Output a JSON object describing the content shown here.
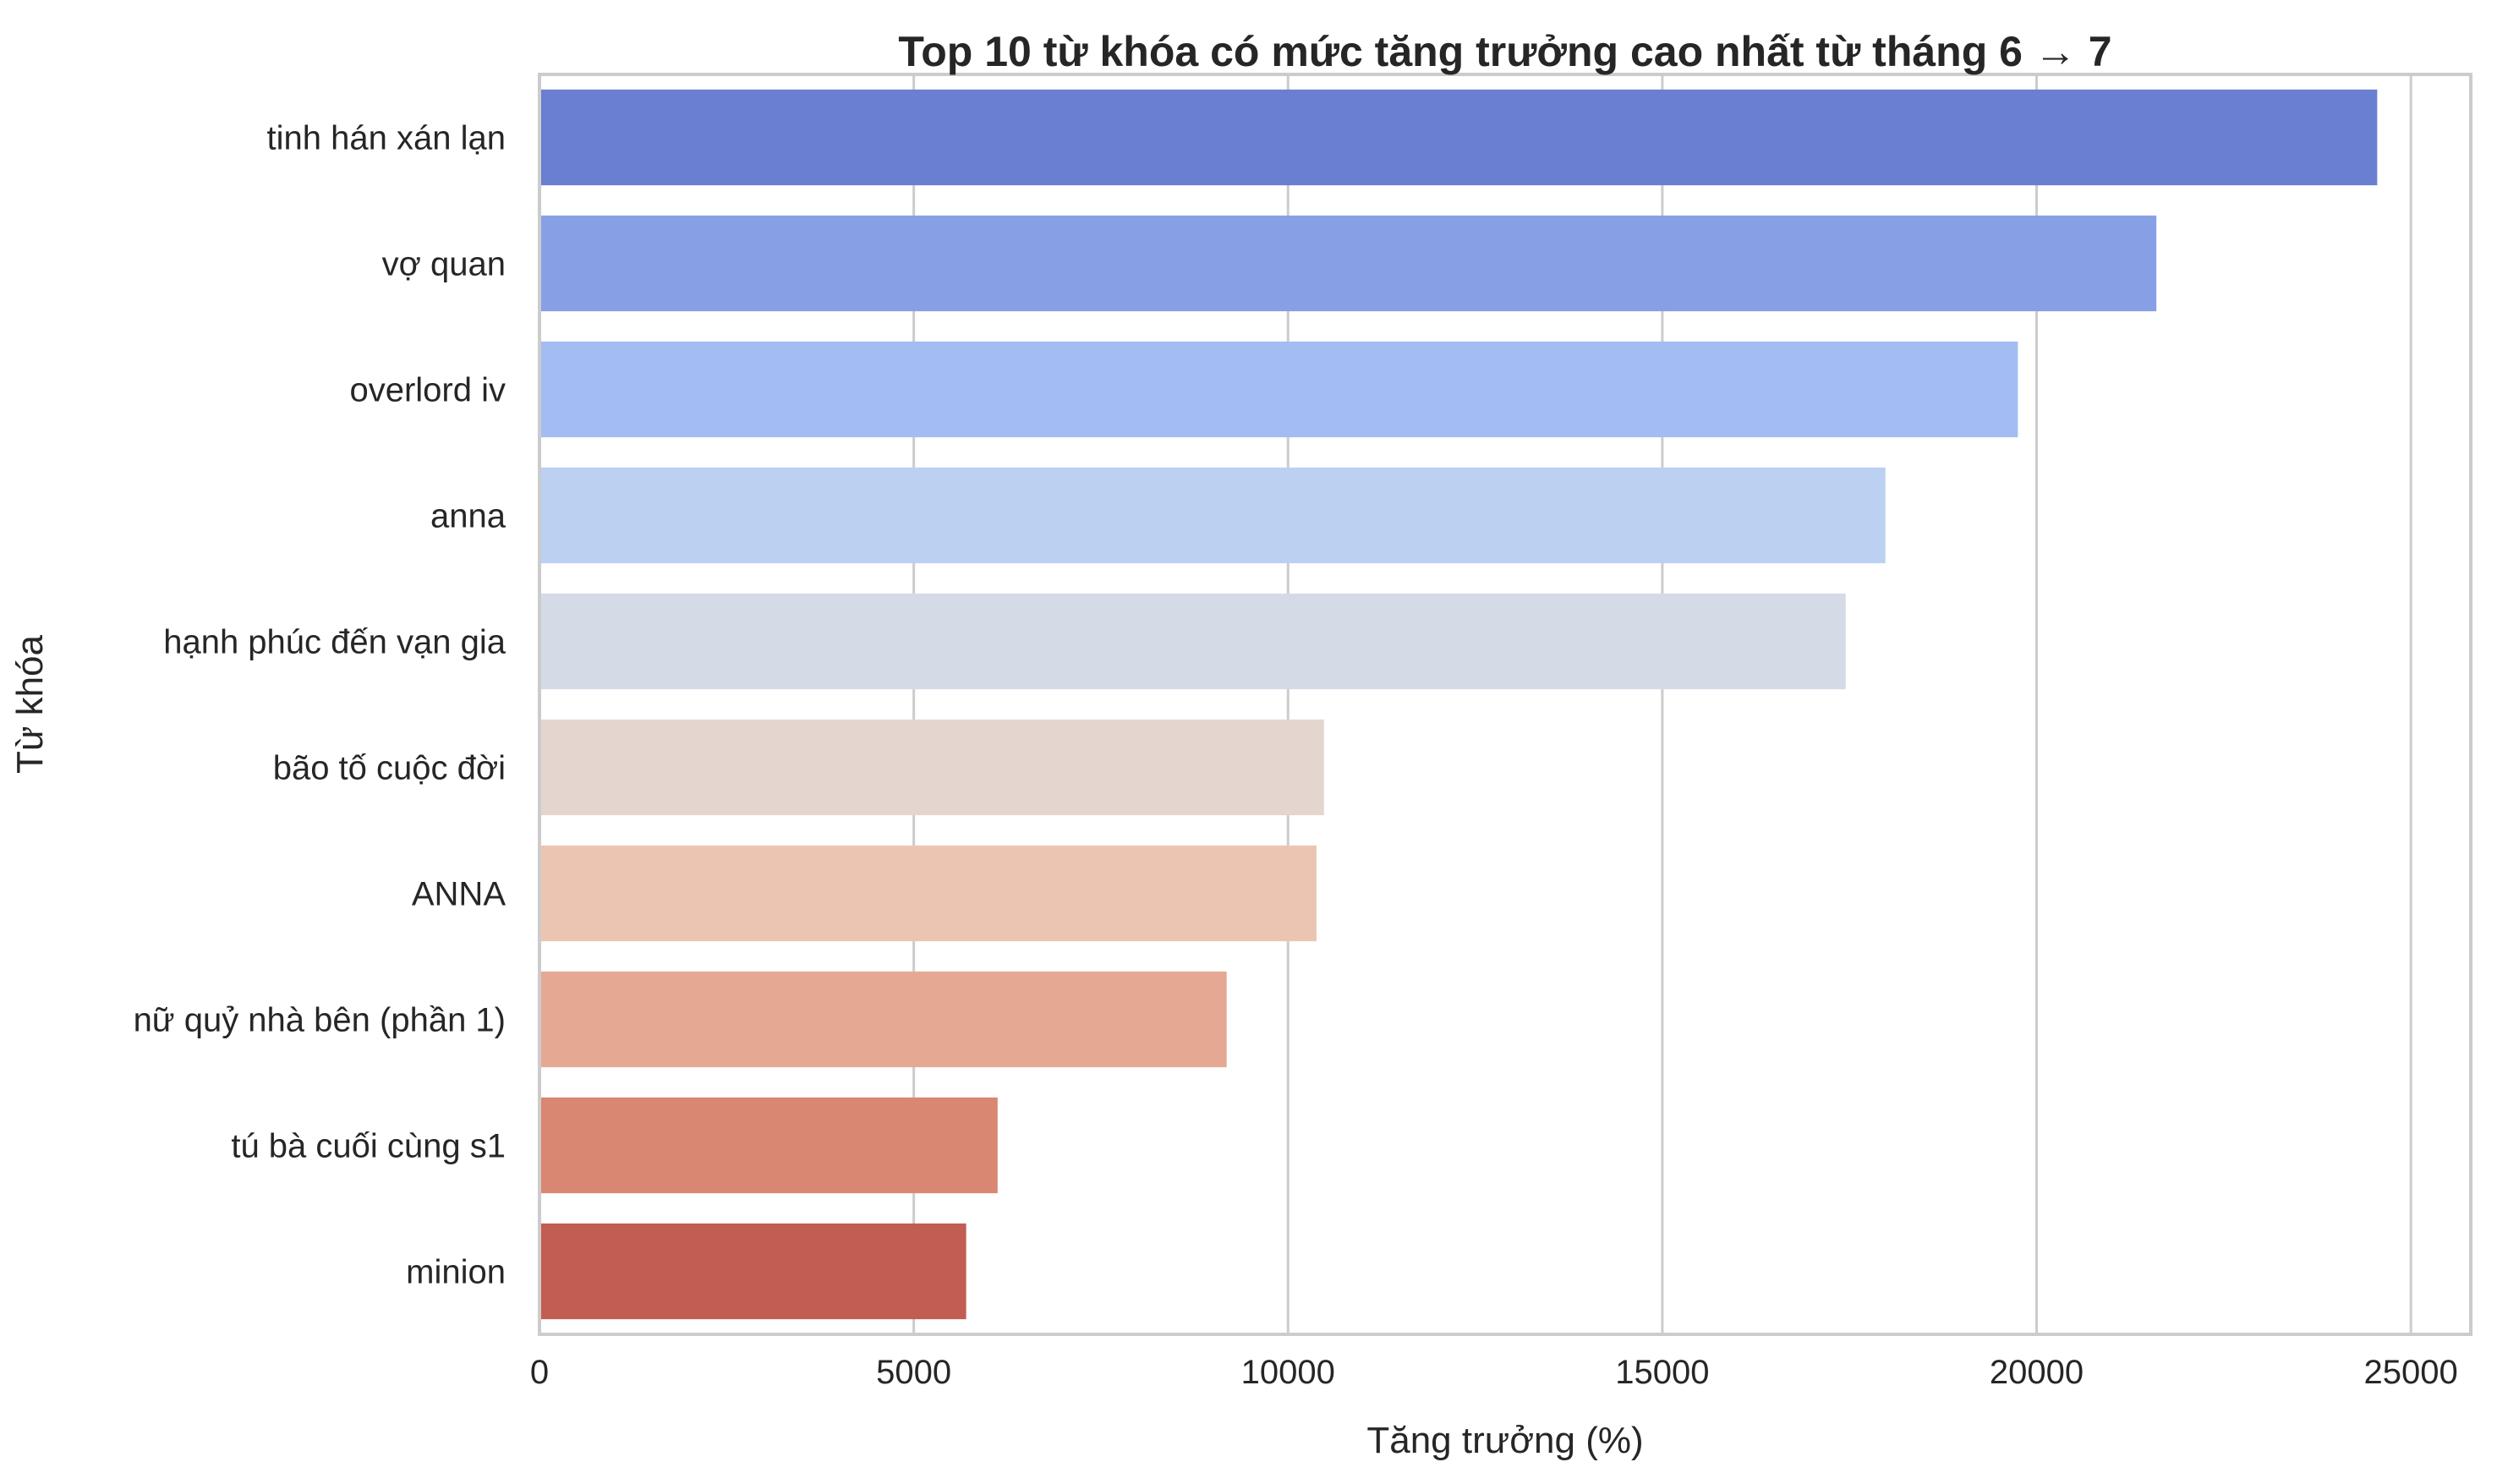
{
  "chart_data": {
    "type": "bar",
    "orientation": "horizontal",
    "title": "Top 10 từ khóa có mức tăng trưởng cao nhất từ tháng 6 → 7",
    "xlabel": "Tăng trưởng (%)",
    "ylabel": "Từ khóa",
    "xlim": [
      0,
      25800
    ],
    "xticks": [
      0,
      5000,
      10000,
      15000,
      20000,
      25000
    ],
    "xtick_labels": [
      "0",
      "5000",
      "10000",
      "15000",
      "20000",
      "25000"
    ],
    "grid": "vertical",
    "categories": [
      "tinh hán xán lạn",
      "vợ quan",
      "overlord iv",
      "anna",
      "hạnh phúc đến vạn gia",
      "bão tố cuộc đời",
      "ANNA",
      "nữ quỷ nhà bên (phần 1)",
      "tú bà cuối cùng s1",
      "minion"
    ],
    "values": [
      24550,
      21600,
      19750,
      17980,
      17450,
      10480,
      10380,
      9180,
      6120,
      5700
    ],
    "colors": [
      "#6a7fd1",
      "#87a0e5",
      "#a3bdf2",
      "#bcd0f2",
      "#d5dbe6",
      "#e4d6ce",
      "#ebc5b1",
      "#e5a993",
      "#d98673",
      "#c15d52"
    ]
  }
}
